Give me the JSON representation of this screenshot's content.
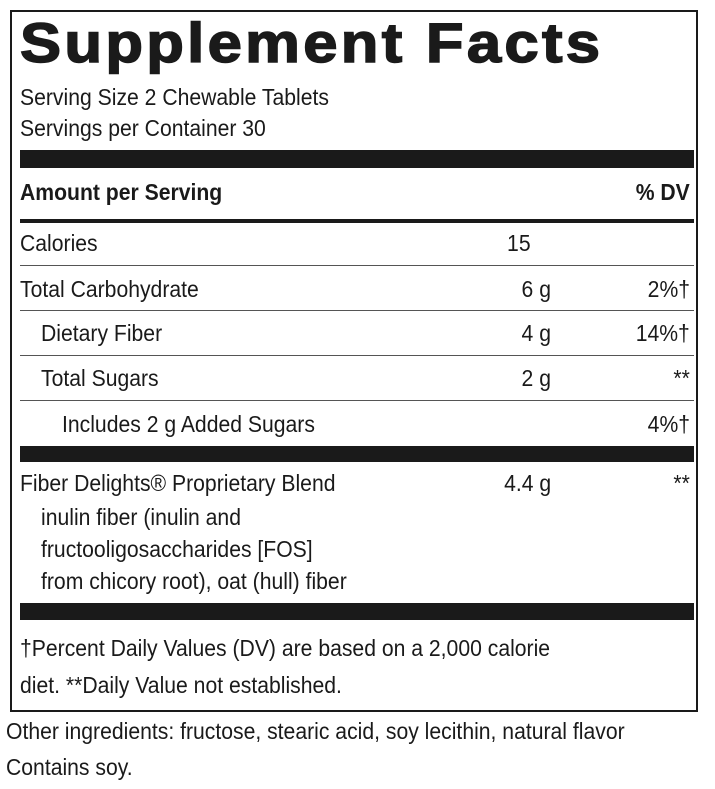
{
  "header": {
    "title": "Supplement Facts",
    "serving_size": "Serving Size 2 Chewable Tablets",
    "servings_per_container": "Servings per Container 30"
  },
  "columns": {
    "amount": "Amount per Serving",
    "dv": "% DV"
  },
  "rows": [
    {
      "name": "Calories",
      "amount": "15",
      "dv": null
    },
    {
      "name": "Total Carbohydrate",
      "amount": "6 g",
      "dv": "2%†"
    },
    {
      "name": "Dietary Fiber",
      "amount": "4 g",
      "dv": "14%†"
    },
    {
      "name": "Total Sugars",
      "amount": "2 g",
      "dv": "**"
    },
    {
      "name": "Includes 2 g Added Sugars",
      "amount": null,
      "dv": "4%†"
    }
  ],
  "blend": {
    "name": "Fiber Delights® Proprietary Blend",
    "amount": "4.4 g",
    "dv": "**",
    "description": [
      "inulin fiber (inulin and",
      "fructooligosaccharides [FOS]",
      "from chicory root), oat (hull) fiber"
    ]
  },
  "footnote": [
    "†Percent Daily Values (DV) are based on a 2,000 calorie",
    "diet. **Daily Value not established."
  ],
  "other_ingredients": "Other ingredients: fructose, stearic acid, soy lecithin, natural flavor",
  "contains": "Contains soy."
}
